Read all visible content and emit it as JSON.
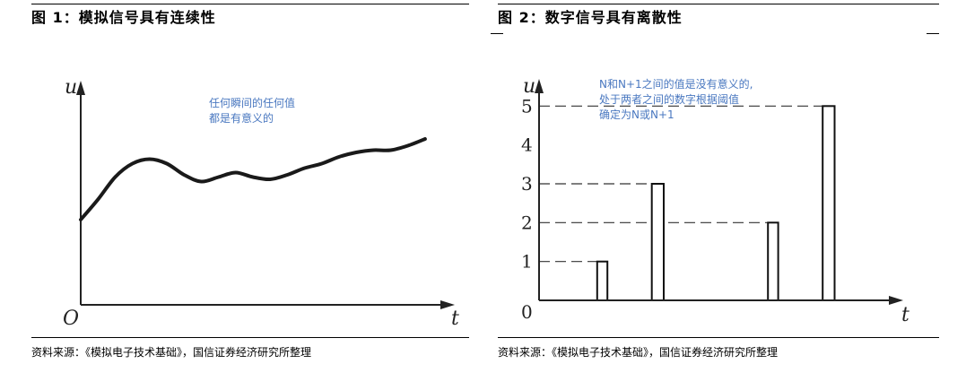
{
  "left": {
    "title": "图 1：模拟信号具有连续性",
    "source": "资料来源：《模拟电子技术基础》，国信证券经济研究所整理",
    "chart_data": {
      "type": "line",
      "title": "图 1：模拟信号具有连续性",
      "xlabel": "t",
      "ylabel": "u",
      "origin_label": "O",
      "annotation": [
        "任何瞬间的任何值",
        "都是有意义的"
      ],
      "series": [
        {
          "x": [
            0,
            0.05,
            0.1,
            0.15,
            0.2,
            0.25,
            0.3,
            0.35,
            0.4,
            0.45,
            0.5,
            0.55,
            0.6,
            0.65,
            0.7,
            0.75,
            0.8,
            0.85,
            0.9,
            0.95,
            1.0
          ],
          "values": [
            0.38,
            0.47,
            0.57,
            0.63,
            0.65,
            0.63,
            0.58,
            0.55,
            0.57,
            0.59,
            0.57,
            0.56,
            0.58,
            0.61,
            0.63,
            0.66,
            0.68,
            0.69,
            0.69,
            0.71,
            0.74
          ]
        }
      ],
      "xlim": [
        0,
        1.12
      ],
      "ylim": [
        0,
        1
      ],
      "grid": false
    }
  },
  "right": {
    "title": "图 2：数字信号具有离散性",
    "source": "资料来源：《模拟电子技术基础》，国信证券经济研究所整理",
    "chart_data": {
      "type": "bar",
      "title": "图 2：数字信号具有离散性",
      "xlabel": "t",
      "ylabel": "u",
      "origin_label": "0",
      "annotation": [
        "N和N+1之间的值是没有意义的,",
        "处于两者之间的数字根据阈值",
        "确定为N或N+1"
      ],
      "yticks": [
        1,
        2,
        3,
        4,
        5
      ],
      "pulses": [
        {
          "start": 1.7,
          "end": 2.0,
          "value": 1
        },
        {
          "start": 3.3,
          "end": 3.65,
          "value": 3
        },
        {
          "start": 6.7,
          "end": 7.0,
          "value": 2
        },
        {
          "start": 8.3,
          "end": 8.65,
          "value": 5
        }
      ],
      "dashed_levels": [
        {
          "value": 1,
          "x_end": 1.7
        },
        {
          "value": 2,
          "x_end": 6.7
        },
        {
          "value": 3,
          "x_end": 3.3
        },
        {
          "value": 5,
          "x_end": 8.3
        }
      ],
      "xlim": [
        0,
        10.5
      ],
      "ylim": [
        0,
        6
      ],
      "grid": false
    }
  }
}
